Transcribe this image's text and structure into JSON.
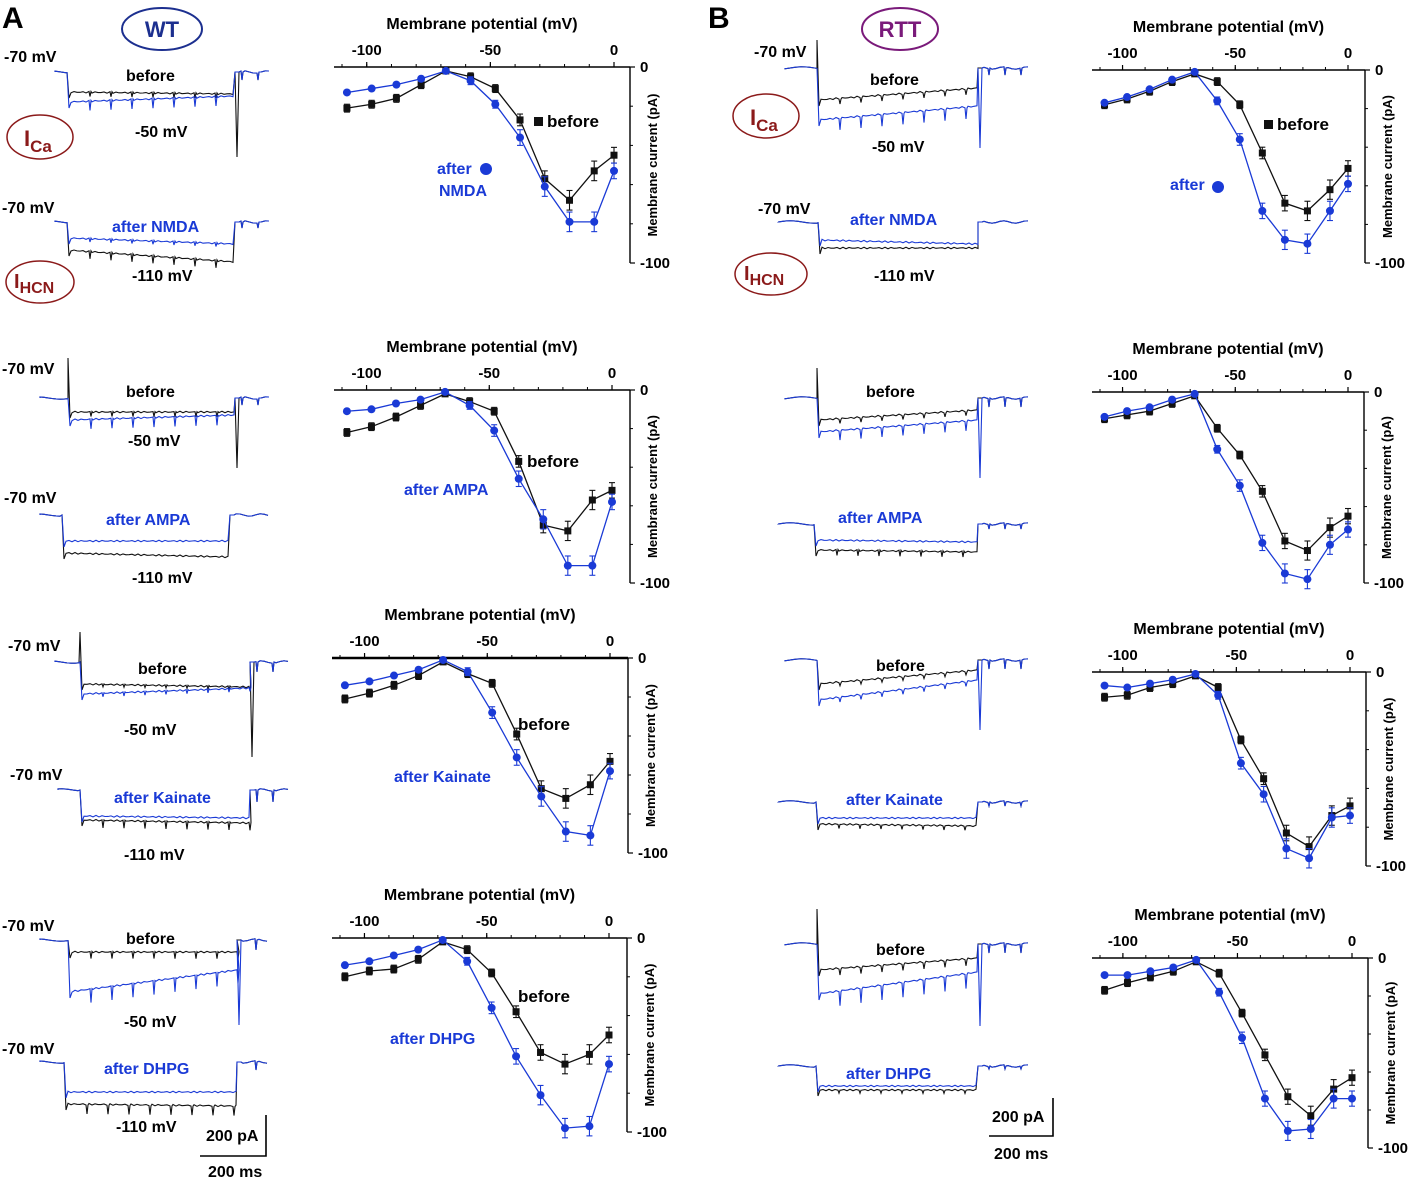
{
  "figure": {
    "panel_a": {
      "letter": "A",
      "genotype": "WT"
    },
    "panel_b": {
      "letter": "B",
      "genotype": "RTT"
    },
    "currents": {
      "ica": {
        "base": "I",
        "sub": "Ca"
      },
      "ihcn": {
        "base": "I",
        "sub": "HCN"
      }
    },
    "scale_bar": {
      "current": "200 pA",
      "time": "200 ms"
    }
  },
  "traces": {
    "v_hold": "-70 mV",
    "v_ca": "-50 mV",
    "v_hcn": "-110 mV",
    "before": "before",
    "after_nmda": "after NMDA",
    "after_ampa": "after AMPA",
    "after_kainate": "after Kainate",
    "after_dhpg": "after DHPG"
  },
  "colors": {
    "before": "#111111",
    "after": "#1a3ad6",
    "wt_oval": "#1c2f8f",
    "rtt_oval": "#7a1a7a",
    "current_label": "#8b1a1a"
  },
  "chart_data": [
    {
      "id": "wt_nmda",
      "type": "line",
      "title": "Membrane potential (mV)",
      "xlabel": "Membrane potential (mV)",
      "ylabel": "Membrane current (pA)",
      "xlim": [
        -110,
        0
      ],
      "ylim": [
        -100,
        0
      ],
      "xticks": [
        -100,
        -50,
        0
      ],
      "yticks": [
        0,
        -100
      ],
      "x": [
        -108,
        -98,
        -88,
        -78,
        -68,
        -58,
        -48,
        -38,
        -28,
        -18,
        -8,
        0
      ],
      "series": [
        {
          "name": "before",
          "label": "before",
          "marker": "square",
          "values": [
            -21,
            -19,
            -16,
            -9,
            -2,
            -5,
            -11,
            -27,
            -57,
            -68,
            -53,
            -45
          ],
          "errors": [
            2,
            2,
            2,
            2,
            1,
            2,
            2,
            3,
            4,
            5,
            5,
            4
          ]
        },
        {
          "name": "after",
          "label": "after NMDA",
          "marker": "circle",
          "values": [
            -13,
            -11,
            -9,
            -6,
            -2,
            -7,
            -19,
            -36,
            -61,
            -79,
            -79,
            -53
          ],
          "errors": [
            1,
            1,
            1,
            1,
            1,
            2,
            2,
            4,
            5,
            5,
            5,
            4
          ]
        }
      ]
    },
    {
      "id": "wt_ampa",
      "type": "line",
      "title": "Membrane potential (mV)",
      "xlabel": "Membrane potential (mV)",
      "ylabel": "Membrane current (pA)",
      "xlim": [
        -110,
        0
      ],
      "ylim": [
        -100,
        0
      ],
      "xticks": [
        -100,
        -50,
        0
      ],
      "yticks": [
        0,
        -100
      ],
      "x": [
        -108,
        -98,
        -88,
        -78,
        -68,
        -58,
        -48,
        -38,
        -28,
        -18,
        -8,
        0
      ],
      "series": [
        {
          "name": "before",
          "label": "before",
          "marker": "square",
          "values": [
            -22,
            -19,
            -14,
            -8,
            -2,
            -6,
            -11,
            -37,
            -70,
            -73,
            -57,
            -52
          ],
          "errors": [
            2,
            2,
            2,
            2,
            1,
            2,
            2,
            3,
            4,
            5,
            5,
            4
          ]
        },
        {
          "name": "after",
          "label": "after AMPA",
          "marker": "circle",
          "values": [
            -11,
            -10,
            -7,
            -5,
            -1,
            -8,
            -21,
            -46,
            -67,
            -91,
            -91,
            -58
          ],
          "errors": [
            1,
            1,
            1,
            1,
            1,
            2,
            3,
            4,
            5,
            5,
            5,
            4
          ]
        }
      ]
    },
    {
      "id": "wt_kainate",
      "type": "line",
      "title": "Membrane potential (mV)",
      "xlabel": "Membrane potential (mV)",
      "ylabel": "Membrane current (pA)",
      "xlim": [
        -110,
        0
      ],
      "ylim": [
        -100,
        0
      ],
      "xticks": [
        -100,
        -50,
        0
      ],
      "yticks": [
        0,
        -100
      ],
      "x": [
        -108,
        -98,
        -88,
        -78,
        -68,
        -58,
        -48,
        -38,
        -28,
        -18,
        -8,
        0
      ],
      "series": [
        {
          "name": "before",
          "label": "before",
          "marker": "square",
          "values": [
            -21,
            -18,
            -14,
            -9,
            -2,
            -8,
            -13,
            -39,
            -67,
            -72,
            -65,
            -53
          ],
          "errors": [
            2,
            2,
            2,
            2,
            1,
            2,
            2,
            3,
            4,
            5,
            5,
            4
          ]
        },
        {
          "name": "after",
          "label": "after Kainate",
          "marker": "circle",
          "values": [
            -14,
            -12,
            -9,
            -6,
            -1,
            -7,
            -28,
            -51,
            -71,
            -89,
            -91,
            -58
          ],
          "errors": [
            1,
            1,
            1,
            1,
            1,
            2,
            3,
            4,
            5,
            5,
            5,
            4
          ]
        }
      ]
    },
    {
      "id": "wt_dhpg",
      "type": "line",
      "title": "Membrane potential (mV)",
      "xlabel": "Membrane potential (mV)",
      "ylabel": "Membrane current (pA)",
      "xlim": [
        -110,
        0
      ],
      "ylim": [
        -100,
        0
      ],
      "xticks": [
        -100,
        -50,
        0
      ],
      "yticks": [
        0,
        -100
      ],
      "x": [
        -108,
        -98,
        -88,
        -78,
        -68,
        -58,
        -48,
        -38,
        -28,
        -18,
        -8,
        0
      ],
      "series": [
        {
          "name": "before",
          "label": "before",
          "marker": "square",
          "values": [
            -20,
            -17,
            -16,
            -11,
            -2,
            -6,
            -18,
            -38,
            -59,
            -65,
            -60,
            -50
          ],
          "errors": [
            2,
            2,
            2,
            2,
            1,
            2,
            2,
            3,
            4,
            5,
            5,
            4
          ]
        },
        {
          "name": "after",
          "label": "after DHPG",
          "marker": "circle",
          "values": [
            -14,
            -12,
            -9,
            -6,
            -1,
            -12,
            -36,
            -61,
            -81,
            -98,
            -97,
            -65
          ],
          "errors": [
            1,
            1,
            1,
            1,
            1,
            2,
            3,
            4,
            5,
            5,
            5,
            4
          ]
        }
      ]
    },
    {
      "id": "rtt_nmda",
      "type": "line",
      "title": "Membrane potential (mV)",
      "xlabel": "Membrane potential (mV)",
      "ylabel": "Membrane current (pA)",
      "xlim": [
        -110,
        0
      ],
      "ylim": [
        -100,
        0
      ],
      "xticks": [
        -100,
        -50,
        0
      ],
      "yticks": [
        0,
        -100
      ],
      "x": [
        -108,
        -98,
        -88,
        -78,
        -68,
        -58,
        -48,
        -38,
        -28,
        -18,
        -8,
        0
      ],
      "series": [
        {
          "name": "before",
          "label": "before",
          "marker": "square",
          "values": [
            -18,
            -15,
            -11,
            -6,
            -2,
            -6,
            -18,
            -43,
            -69,
            -73,
            -62,
            -51
          ],
          "errors": [
            2,
            2,
            2,
            2,
            1,
            2,
            2,
            3,
            4,
            5,
            5,
            4
          ]
        },
        {
          "name": "after",
          "label": "after",
          "marker": "circle",
          "values": [
            -17,
            -14,
            -10,
            -5,
            -1,
            -16,
            -36,
            -73,
            -88,
            -90,
            -73,
            -59
          ],
          "errors": [
            1,
            1,
            1,
            1,
            1,
            2,
            3,
            4,
            5,
            5,
            5,
            4
          ]
        }
      ]
    },
    {
      "id": "rtt_ampa",
      "type": "line",
      "title": "Membrane potential (mV)",
      "xlabel": "Membrane potential (mV)",
      "ylabel": "Membrane current (pA)",
      "xlim": [
        -110,
        0
      ],
      "ylim": [
        -100,
        0
      ],
      "xticks": [
        -100,
        -50,
        0
      ],
      "yticks": [
        0,
        -100
      ],
      "x": [
        -108,
        -98,
        -88,
        -78,
        -68,
        -58,
        -48,
        -38,
        -28,
        -18,
        -8,
        0
      ],
      "series": [
        {
          "name": "before",
          "label": "before",
          "marker": "square",
          "values": [
            -14,
            -12,
            -10,
            -6,
            -2,
            -19,
            -33,
            -52,
            -78,
            -83,
            -71,
            -65
          ],
          "errors": [
            2,
            2,
            2,
            2,
            1,
            2,
            2,
            3,
            4,
            5,
            5,
            4
          ]
        },
        {
          "name": "after",
          "label": "after AMPA",
          "marker": "circle",
          "values": [
            -13,
            -10,
            -8,
            -4,
            -1,
            -30,
            -49,
            -79,
            -95,
            -98,
            -80,
            -72
          ],
          "errors": [
            1,
            1,
            1,
            1,
            1,
            2,
            3,
            4,
            5,
            5,
            5,
            4
          ]
        }
      ]
    },
    {
      "id": "rtt_kainate",
      "type": "line",
      "title": "Membrane potential (mV)",
      "xlabel": "Membrane potential (mV)",
      "ylabel": "Membrane current (pA)",
      "xlim": [
        -110,
        0
      ],
      "ylim": [
        -100,
        0
      ],
      "xticks": [
        -100,
        -50,
        0
      ],
      "yticks": [
        0,
        -100
      ],
      "x": [
        -108,
        -98,
        -88,
        -78,
        -68,
        -58,
        -48,
        -38,
        -28,
        -18,
        -8,
        0
      ],
      "series": [
        {
          "name": "before",
          "label": "before",
          "marker": "square",
          "values": [
            -13,
            -12,
            -8,
            -6,
            -2,
            -8,
            -35,
            -55,
            -83,
            -90,
            -74,
            -69
          ],
          "errors": [
            2,
            2,
            2,
            2,
            1,
            2,
            2,
            3,
            4,
            5,
            5,
            4
          ]
        },
        {
          "name": "after",
          "label": "after Kainate",
          "marker": "circle",
          "values": [
            -7,
            -8,
            -6,
            -4,
            -1,
            -12,
            -47,
            -63,
            -91,
            -96,
            -75,
            -74
          ],
          "errors": [
            1,
            1,
            1,
            1,
            1,
            2,
            3,
            4,
            5,
            5,
            5,
            4
          ]
        }
      ]
    },
    {
      "id": "rtt_dhpg",
      "type": "line",
      "title": "Membrane potential (mV)",
      "xlabel": "Membrane potential (mV)",
      "ylabel": "Membrane current (pA)",
      "xlim": [
        -110,
        0
      ],
      "ylim": [
        -100,
        0
      ],
      "xticks": [
        -100,
        -50,
        0
      ],
      "yticks": [
        0,
        -100
      ],
      "x": [
        -108,
        -98,
        -88,
        -78,
        -68,
        -58,
        -48,
        -38,
        -28,
        -18,
        -8,
        0
      ],
      "series": [
        {
          "name": "before",
          "label": "before",
          "marker": "square",
          "values": [
            -17,
            -13,
            -10,
            -7,
            -2,
            -8,
            -29,
            -51,
            -73,
            -83,
            -69,
            -63
          ],
          "errors": [
            2,
            2,
            2,
            2,
            1,
            2,
            2,
            3,
            4,
            5,
            5,
            4
          ]
        },
        {
          "name": "after",
          "label": "after",
          "marker": "circle",
          "values": [
            -9,
            -9,
            -7,
            -5,
            -1,
            -18,
            -42,
            -74,
            -91,
            -90,
            -74,
            -74
          ],
          "errors": [
            1,
            1,
            1,
            1,
            1,
            2,
            3,
            4,
            5,
            5,
            5,
            4
          ]
        }
      ]
    }
  ]
}
